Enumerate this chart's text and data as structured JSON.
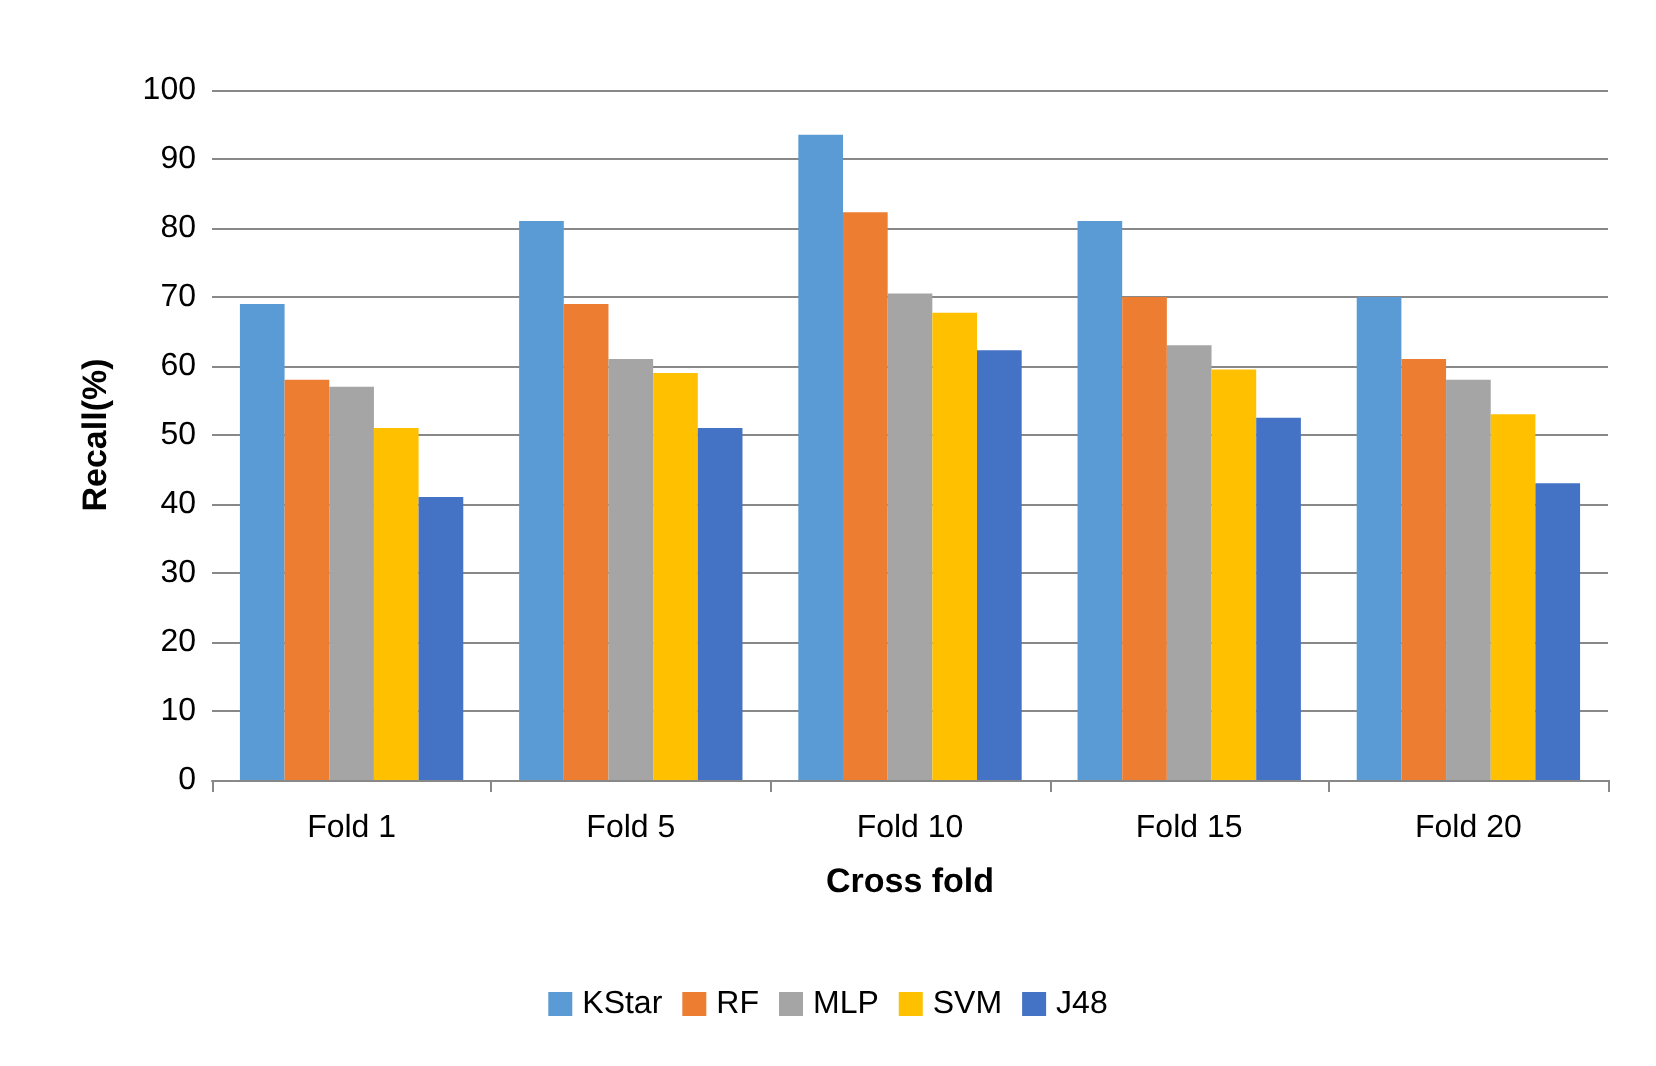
{
  "chart_data": {
    "type": "bar",
    "xlabel": "Cross fold",
    "ylabel": "Recall(%)",
    "categories": [
      "Fold 1",
      "Fold 5",
      "Fold 10",
      "Fold 15",
      "Fold 20"
    ],
    "series": [
      {
        "name": "KStar",
        "color": "#5b9bd5",
        "values": [
          69,
          81,
          93.5,
          81,
          70
        ]
      },
      {
        "name": "RF",
        "color": "#ed7d31",
        "values": [
          58,
          69,
          82.3,
          70,
          61
        ]
      },
      {
        "name": "MLP",
        "color": "#a5a5a5",
        "values": [
          57,
          61,
          70.5,
          63,
          58
        ]
      },
      {
        "name": "SVM",
        "color": "#ffc000",
        "values": [
          51,
          59,
          67.7,
          59.5,
          53
        ]
      },
      {
        "name": "J48",
        "color": "#4472c4",
        "values": [
          41,
          51,
          62.3,
          52.5,
          43
        ]
      }
    ],
    "ylim": [
      0,
      100
    ],
    "yticks": [
      0,
      10,
      20,
      30,
      40,
      50,
      60,
      70,
      80,
      90,
      100
    ],
    "grid": "y",
    "legend": "bottom"
  }
}
